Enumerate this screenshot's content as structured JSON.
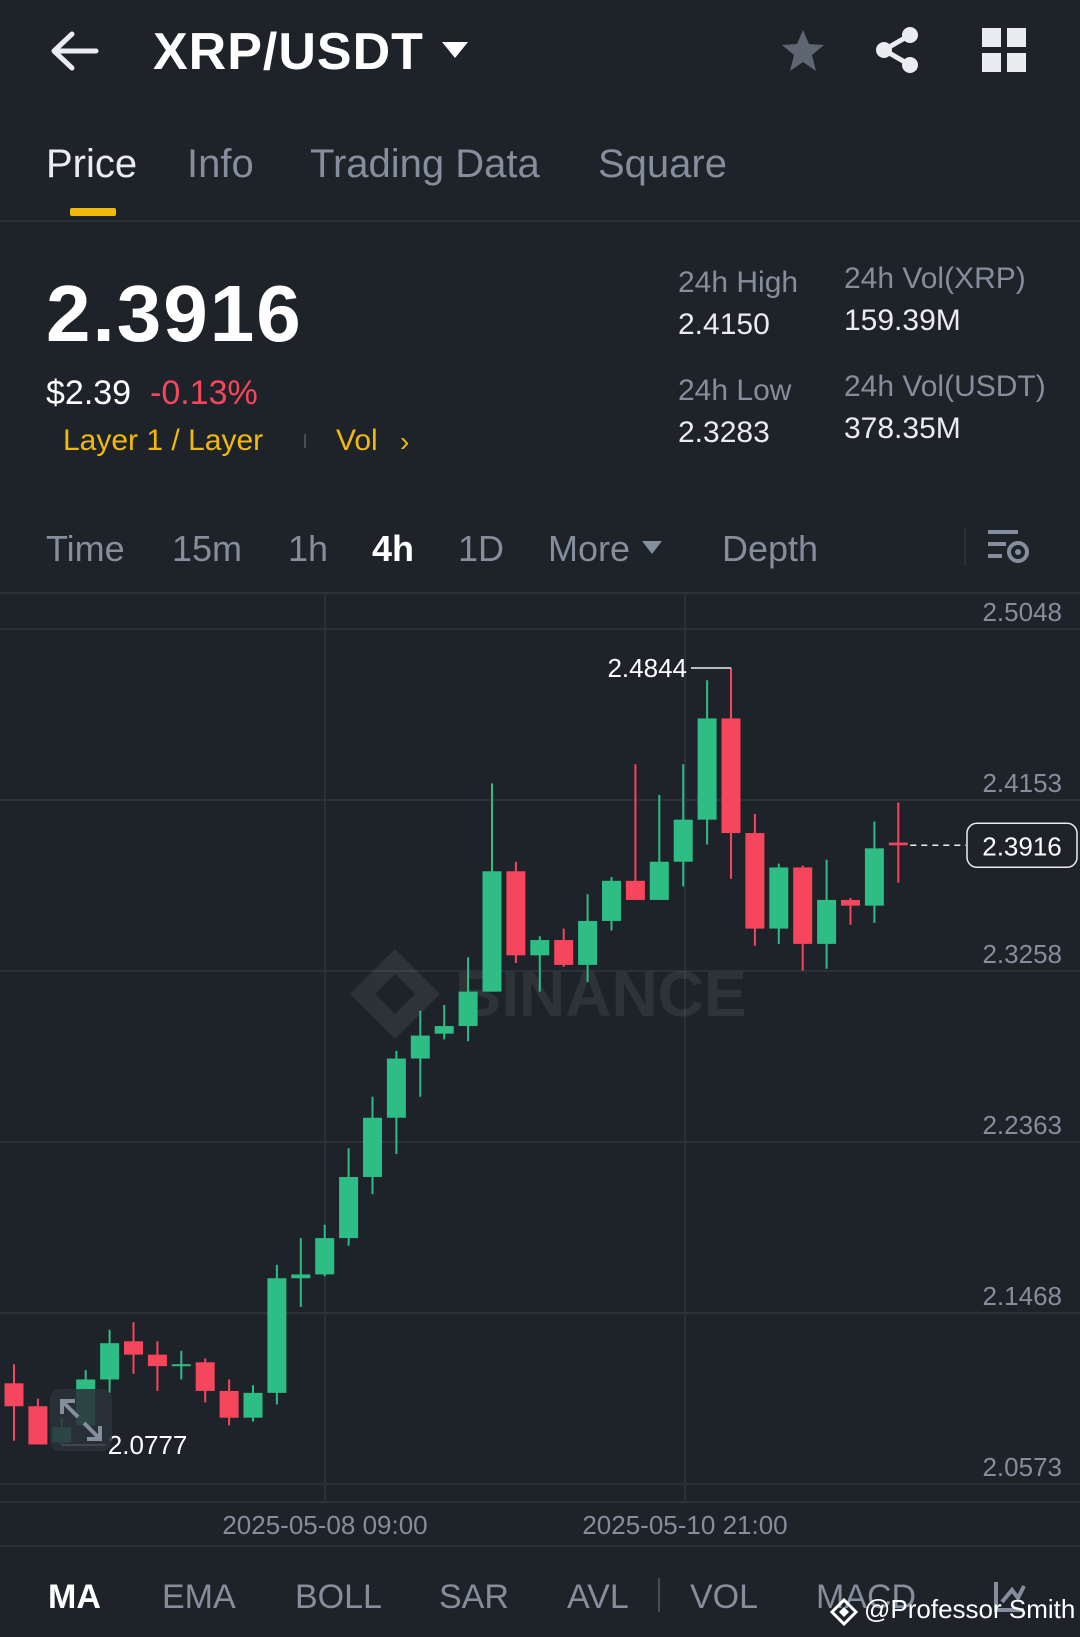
{
  "header": {
    "pair": "XRP/USDT"
  },
  "tabs": [
    {
      "label": "Price",
      "active": true
    },
    {
      "label": "Info",
      "active": false
    },
    {
      "label": "Trading Data",
      "active": false
    },
    {
      "label": "Square",
      "active": false
    }
  ],
  "ticker": {
    "last_price": "2.3916",
    "usd_price": "$2.39",
    "change_pct": "-0.13%",
    "tag": "Layer 1 / Layer",
    "vol_link": "Vol",
    "high_label": "24h High",
    "high_value": "2.4150",
    "low_label": "24h Low",
    "low_value": "2.3283",
    "vol_xrp_label": "24h Vol(XRP)",
    "vol_xrp_value": "159.39M",
    "vol_usdt_label": "24h Vol(USDT)",
    "vol_usdt_value": "378.35M"
  },
  "timeframes": [
    {
      "label": "Time",
      "active": false
    },
    {
      "label": "15m",
      "active": false
    },
    {
      "label": "1h",
      "active": false
    },
    {
      "label": "4h",
      "active": true
    },
    {
      "label": "1D",
      "active": false
    },
    {
      "label": "More",
      "active": false
    },
    {
      "label": "Depth",
      "active": false
    }
  ],
  "indicators": [
    {
      "label": "MA",
      "active": true
    },
    {
      "label": "EMA",
      "active": false
    },
    {
      "label": "BOLL",
      "active": false
    },
    {
      "label": "SAR",
      "active": false
    },
    {
      "label": "AVL",
      "active": false
    },
    {
      "label": "VOL",
      "active": false
    },
    {
      "label": "MACD",
      "active": false
    }
  ],
  "watermark_text": "BINANCE",
  "credit": "@Professor Smith",
  "colors": {
    "up": "#2ebd85",
    "down": "#f6465d",
    "accent": "#f0b90b",
    "bg": "#1e2329"
  },
  "chart_data": {
    "type": "candlestick",
    "y_ticks": [
      "2.5048",
      "2.4153",
      "2.3258",
      "2.2363",
      "2.1468",
      "2.0573"
    ],
    "ylim": [
      2.0573,
      2.5048
    ],
    "x_ticks": [
      "2025-05-08 09:00",
      "2025-05-10 21:00"
    ],
    "last_price": "2.3916",
    "max_label": "2.4844",
    "min_label": "2.0777",
    "candles": [
      {
        "o": 2.11,
        "h": 2.12,
        "l": 2.08,
        "c": 2.098
      },
      {
        "o": 2.098,
        "h": 2.102,
        "l": 2.08,
        "c": 2.078
      },
      {
        "o": 2.079,
        "h": 2.092,
        "l": 2.0777,
        "c": 2.087
      },
      {
        "o": 2.088,
        "h": 2.117,
        "l": 2.087,
        "c": 2.112
      },
      {
        "o": 2.112,
        "h": 2.138,
        "l": 2.105,
        "c": 2.131
      },
      {
        "o": 2.132,
        "h": 2.142,
        "l": 2.115,
        "c": 2.125
      },
      {
        "o": 2.125,
        "h": 2.132,
        "l": 2.106,
        "c": 2.119
      },
      {
        "o": 2.119,
        "h": 2.127,
        "l": 2.112,
        "c": 2.12
      },
      {
        "o": 2.121,
        "h": 2.123,
        "l": 2.1,
        "c": 2.106
      },
      {
        "o": 2.106,
        "h": 2.112,
        "l": 2.088,
        "c": 2.092
      },
      {
        "o": 2.092,
        "h": 2.109,
        "l": 2.09,
        "c": 2.105
      },
      {
        "o": 2.105,
        "h": 2.172,
        "l": 2.099,
        "c": 2.165
      },
      {
        "o": 2.165,
        "h": 2.186,
        "l": 2.15,
        "c": 2.167
      },
      {
        "o": 2.167,
        "h": 2.193,
        "l": 2.166,
        "c": 2.186
      },
      {
        "o": 2.186,
        "h": 2.233,
        "l": 2.182,
        "c": 2.218
      },
      {
        "o": 2.218,
        "h": 2.26,
        "l": 2.209,
        "c": 2.249
      },
      {
        "o": 2.249,
        "h": 2.284,
        "l": 2.23,
        "c": 2.28
      },
      {
        "o": 2.28,
        "h": 2.305,
        "l": 2.26,
        "c": 2.292
      },
      {
        "o": 2.293,
        "h": 2.308,
        "l": 2.29,
        "c": 2.297
      },
      {
        "o": 2.297,
        "h": 2.333,
        "l": 2.289,
        "c": 2.315
      },
      {
        "o": 2.315,
        "h": 2.424,
        "l": 2.315,
        "c": 2.378
      },
      {
        "o": 2.378,
        "h": 2.383,
        "l": 2.33,
        "c": 2.334
      },
      {
        "o": 2.334,
        "h": 2.344,
        "l": 2.315,
        "c": 2.342
      },
      {
        "o": 2.342,
        "h": 2.348,
        "l": 2.328,
        "c": 2.329
      },
      {
        "o": 2.329,
        "h": 2.366,
        "l": 2.32,
        "c": 2.352
      },
      {
        "o": 2.352,
        "h": 2.375,
        "l": 2.347,
        "c": 2.373
      },
      {
        "o": 2.373,
        "h": 2.434,
        "l": 2.367,
        "c": 2.363
      },
      {
        "o": 2.363,
        "h": 2.418,
        "l": 2.363,
        "c": 2.383
      },
      {
        "o": 2.383,
        "h": 2.434,
        "l": 2.37,
        "c": 2.405
      },
      {
        "o": 2.405,
        "h": 2.478,
        "l": 2.392,
        "c": 2.458
      },
      {
        "o": 2.458,
        "h": 2.4844,
        "l": 2.374,
        "c": 2.398
      },
      {
        "o": 2.398,
        "h": 2.408,
        "l": 2.339,
        "c": 2.348
      },
      {
        "o": 2.348,
        "h": 2.382,
        "l": 2.34,
        "c": 2.38
      },
      {
        "o": 2.38,
        "h": 2.381,
        "l": 2.326,
        "c": 2.34
      },
      {
        "o": 2.34,
        "h": 2.384,
        "l": 2.327,
        "c": 2.363
      },
      {
        "o": 2.363,
        "h": 2.364,
        "l": 2.35,
        "c": 2.36
      },
      {
        "o": 2.36,
        "h": 2.404,
        "l": 2.351,
        "c": 2.39
      },
      {
        "o": 2.393,
        "h": 2.414,
        "l": 2.372,
        "c": 2.3916
      }
    ]
  }
}
